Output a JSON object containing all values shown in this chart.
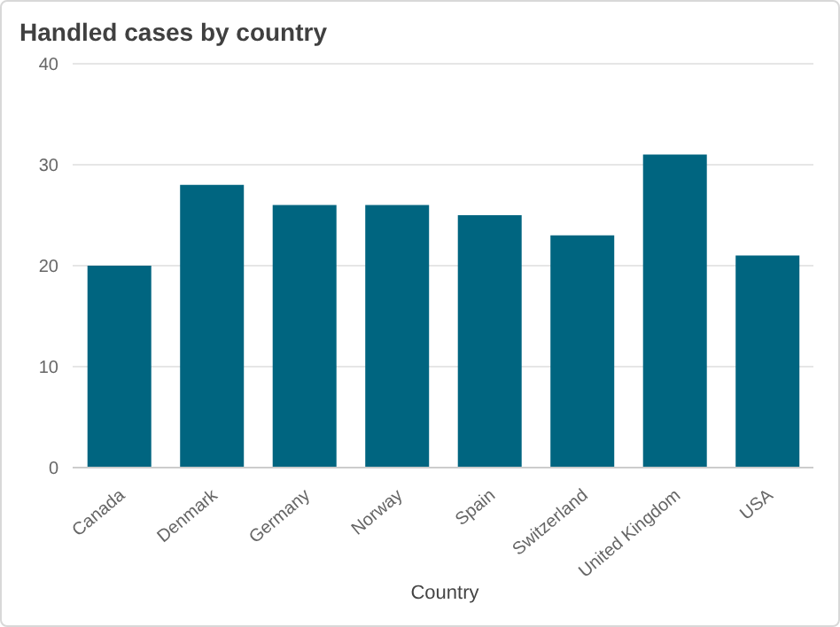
{
  "chart_data": {
    "type": "bar",
    "title": "Handled cases by country",
    "xlabel": "Country",
    "categories": [
      "Canada",
      "Denmark",
      "Germany",
      "Norway",
      "Spain",
      "Switzerland",
      "United Kingdom",
      "USA"
    ],
    "values": [
      20,
      28,
      26,
      26,
      25,
      23,
      31,
      21
    ],
    "color": "#006580",
    "ylim": [
      0,
      40
    ],
    "yticks": [
      0,
      10,
      20,
      30,
      40
    ],
    "grid": "y"
  }
}
